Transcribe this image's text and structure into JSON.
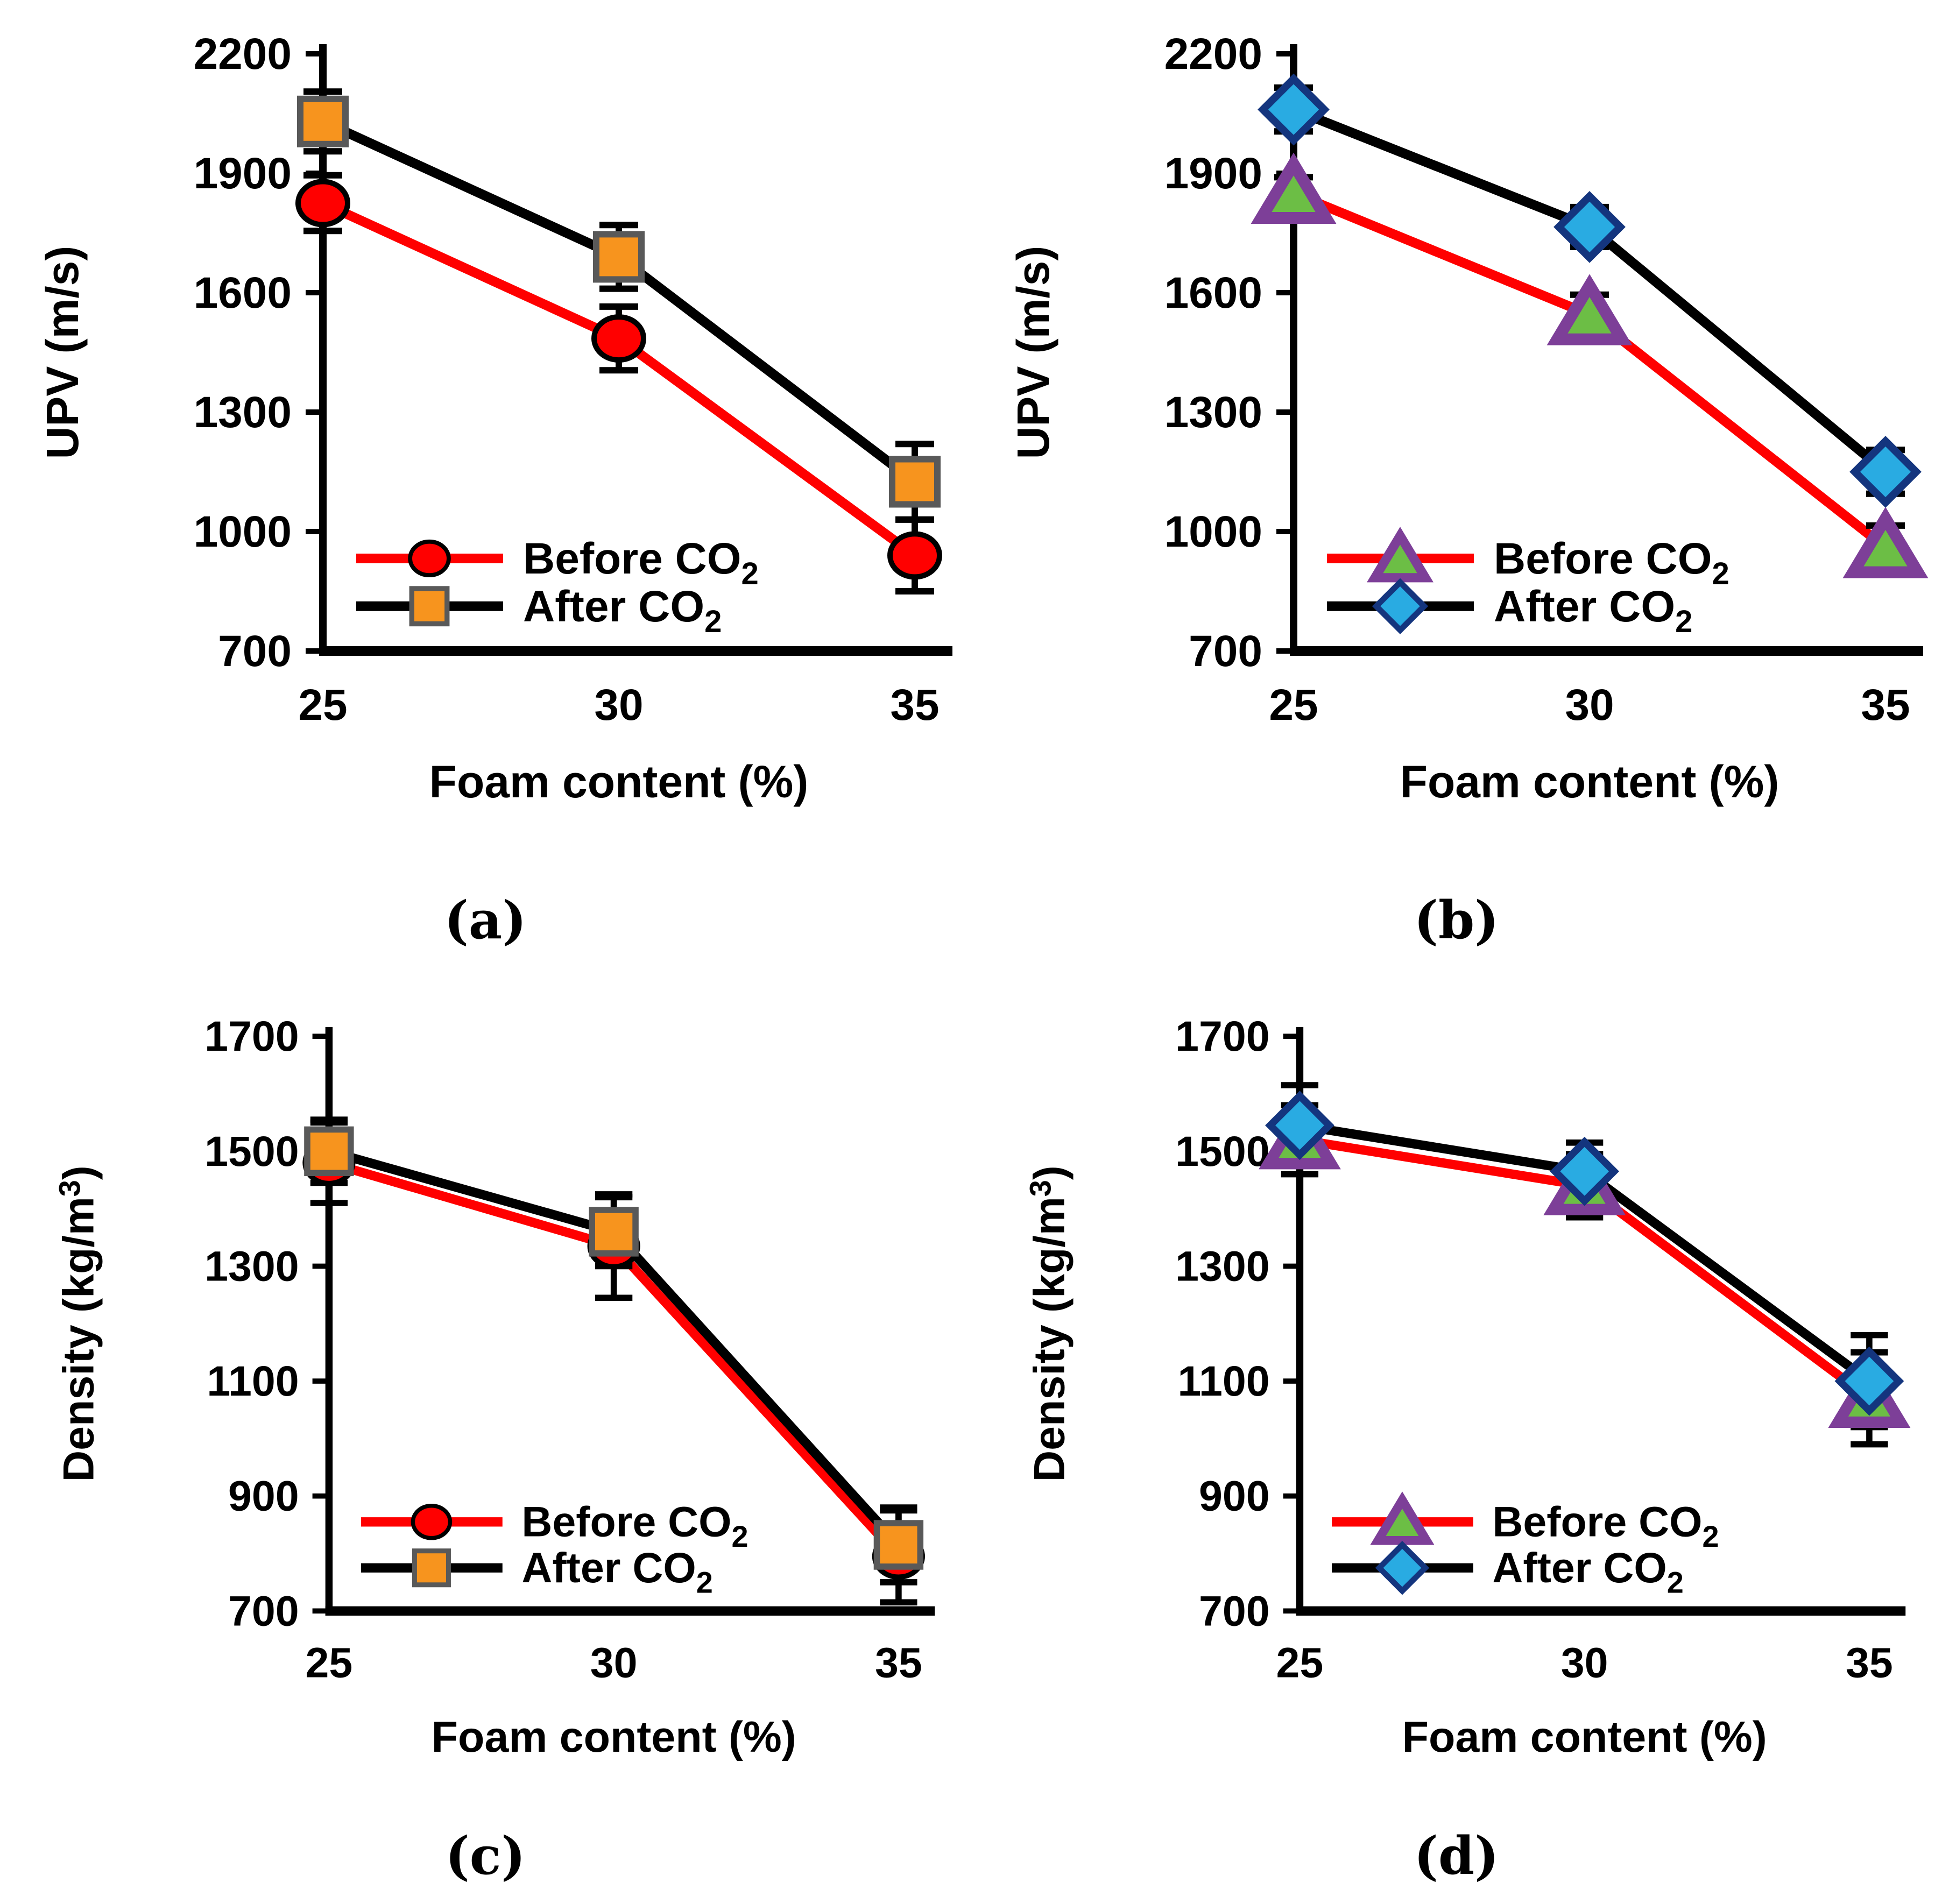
{
  "figure": {
    "background": "#ffffff",
    "error_bar_color": "#000000",
    "axis_color": "#000000"
  },
  "chart_data": [
    {
      "id": "a",
      "caption": "(a)",
      "type": "line",
      "x": [
        25,
        30,
        35
      ],
      "xticks": [
        "25",
        "30",
        "35"
      ],
      "xlabel": "Foam content (%)",
      "ylabel": "UPV (m/s)",
      "ylabel_pre": "UPV (m/s)",
      "ylabel_sup": "",
      "ylabel_post": "",
      "ylim": [
        700,
        2200
      ],
      "yticks": [
        700,
        1000,
        1300,
        1600,
        1900,
        2200
      ],
      "grid": "off",
      "legend_position": "lower-left",
      "series": [
        {
          "name": "Before CO₂",
          "label_base": "Before CO",
          "label_sub": "2",
          "line_color": "#FF0000",
          "marker": "circle",
          "marker_fill": "#FF0000",
          "marker_stroke": "#000000",
          "values": [
            1825,
            1485,
            940
          ],
          "err": [
            70,
            80,
            90
          ]
        },
        {
          "name": "After CO₂",
          "label_base": "After CO",
          "label_sub": "2",
          "line_color": "#000000",
          "marker": "square",
          "marker_fill": "#F7941E",
          "marker_stroke": "#595959",
          "values": [
            2030,
            1690,
            1125
          ],
          "err": [
            75,
            80,
            95
          ]
        }
      ]
    },
    {
      "id": "b",
      "caption": "(b)",
      "type": "line",
      "x": [
        25,
        30,
        35
      ],
      "xticks": [
        "25",
        "30",
        "35"
      ],
      "xlabel": "Foam content (%)",
      "ylabel": "UPV (m/s)",
      "ylabel_pre": "UPV (m/s)",
      "ylabel_sup": "",
      "ylabel_post": "",
      "ylim": [
        700,
        2200
      ],
      "yticks": [
        700,
        1000,
        1300,
        1600,
        1900,
        2200
      ],
      "grid": "off",
      "legend_position": "lower-left",
      "series": [
        {
          "name": "Before CO₂",
          "label_base": "Before CO",
          "label_sub": "2",
          "line_color": "#FF0000",
          "marker": "triangle",
          "marker_fill": "#6CBE45",
          "marker_stroke": "#7D3F98",
          "values": [
            1850,
            1545,
            960
          ],
          "err": [
            40,
            50,
            55
          ]
        },
        {
          "name": "After CO₂",
          "label_base": "After CO",
          "label_sub": "2",
          "line_color": "#000000",
          "marker": "diamond",
          "marker_fill": "#29ABE2",
          "marker_stroke": "#14357E",
          "values": [
            2060,
            1765,
            1150
          ],
          "err": [
            55,
            50,
            55
          ]
        }
      ]
    },
    {
      "id": "c",
      "caption": "(c)",
      "type": "line",
      "x": [
        25,
        30,
        35
      ],
      "xticks": [
        "25",
        "30",
        "35"
      ],
      "xlabel": "Foam content (%)",
      "ylabel": "Density (kg/m³)",
      "ylabel_pre": "Density (kg/m",
      "ylabel_sup": "3",
      "ylabel_post": ")",
      "ylim": [
        700,
        1700
      ],
      "yticks": [
        700,
        900,
        1100,
        1300,
        1500,
        1700
      ],
      "grid": "off",
      "legend_position": "lower-left",
      "series": [
        {
          "name": "Before CO₂",
          "label_base": "Before CO",
          "label_sub": "2",
          "line_color": "#FF0000",
          "marker": "circle",
          "marker_fill": "#FF0000",
          "marker_stroke": "#000000",
          "values": [
            1480,
            1335,
            795
          ],
          "err": [
            70,
            90,
            80
          ]
        },
        {
          "name": "After CO₂",
          "label_base": "After CO",
          "label_sub": "2",
          "line_color": "#000000",
          "marker": "square",
          "marker_fill": "#F7941E",
          "marker_stroke": "#595959",
          "values": [
            1500,
            1360,
            815
          ],
          "err": [
            55,
            60,
            65
          ]
        }
      ]
    },
    {
      "id": "d",
      "caption": "(d)",
      "type": "line",
      "x": [
        25,
        30,
        35
      ],
      "xticks": [
        "25",
        "30",
        "35"
      ],
      "xlabel": "Foam content (%)",
      "ylabel": "Density (kg/m³)",
      "ylabel_pre": "Density (kg/m",
      "ylabel_sup": "3",
      "ylabel_post": ")",
      "ylim": [
        700,
        1700
      ],
      "yticks": [
        700,
        900,
        1100,
        1300,
        1500,
        1700
      ],
      "grid": "off",
      "legend_position": "lower-left",
      "series": [
        {
          "name": "Before CO₂",
          "label_base": "Before CO",
          "label_sub": "2",
          "line_color": "#FF0000",
          "marker": "triangle",
          "marker_fill": "#6CBE45",
          "marker_stroke": "#7D3F98",
          "values": [
            1520,
            1440,
            1070
          ],
          "err": [
            60,
            55,
            80
          ]
        },
        {
          "name": "After CO₂",
          "label_base": "After CO",
          "label_sub": "2",
          "line_color": "#000000",
          "marker": "diamond",
          "marker_fill": "#29ABE2",
          "marker_stroke": "#14357E",
          "values": [
            1545,
            1465,
            1100
          ],
          "err": [
            70,
            50,
            80
          ]
        }
      ]
    }
  ]
}
